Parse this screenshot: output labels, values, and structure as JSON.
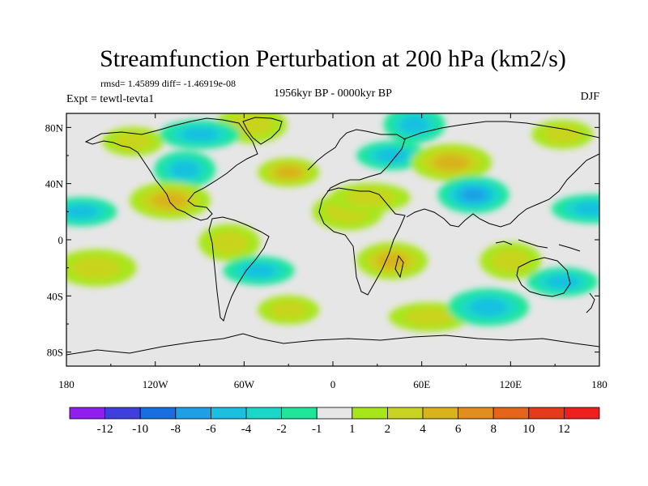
{
  "chart_data": {
    "type": "heatmap",
    "title": "Streamfunction Perturbation at 200 hPa (km2/s)",
    "stats_line": "rmsd= 1.45899 diff= -1.46919e-08",
    "left_label": "Expt = tewtl-tevta1",
    "center_label": "1956kyr BP - 0000kyr BP",
    "right_label": "DJF",
    "x_ticks": [
      "180",
      "120W",
      "60W",
      "0",
      "60E",
      "120E",
      "180"
    ],
    "x_tick_values": [
      -180,
      -120,
      -60,
      0,
      60,
      120,
      180
    ],
    "y_ticks": [
      "80N",
      "40N",
      "0",
      "40S",
      "80S"
    ],
    "y_tick_values": [
      80,
      40,
      0,
      -40,
      -80
    ],
    "xlim": [
      -180,
      180
    ],
    "ylim": [
      -90,
      90
    ],
    "colorbar": {
      "labels": [
        "-12",
        "-10",
        "-8",
        "-6",
        "-4",
        "-2",
        "-1",
        "1",
        "2",
        "4",
        "6",
        "8",
        "10",
        "12"
      ],
      "colors": [
        "#8f1ff0",
        "#3f3fe0",
        "#1a6fe0",
        "#1f9fe6",
        "#19c0df",
        "#1ad8c8",
        "#1fe69a",
        "#e6e6e6",
        "#a8e61a",
        "#c8d41f",
        "#d8b41a",
        "#e08f1f",
        "#e6651a",
        "#e63a1a",
        "#f01f1f"
      ]
    },
    "anomalies": [
      {
        "lon": -135,
        "lat": 70,
        "value": 2
      },
      {
        "lon": -55,
        "lat": 82,
        "value": 2
      },
      {
        "lon": -90,
        "lat": 75,
        "value": -4
      },
      {
        "lon": -100,
        "lat": 50,
        "value": -4
      },
      {
        "lon": -170,
        "lat": 20,
        "value": -4
      },
      {
        "lon": -110,
        "lat": 28,
        "value": 5
      },
      {
        "lon": -30,
        "lat": 48,
        "value": 4
      },
      {
        "lon": 10,
        "lat": 20,
        "value": 2
      },
      {
        "lon": 25,
        "lat": 30,
        "value": 2
      },
      {
        "lon": 55,
        "lat": 82,
        "value": -4
      },
      {
        "lon": 40,
        "lat": 60,
        "value": -4
      },
      {
        "lon": 80,
        "lat": 55,
        "value": 4
      },
      {
        "lon": 155,
        "lat": 75,
        "value": 2
      },
      {
        "lon": 95,
        "lat": 32,
        "value": -6
      },
      {
        "lon": 175,
        "lat": 22,
        "value": -4
      },
      {
        "lon": -70,
        "lat": -2,
        "value": 2
      },
      {
        "lon": -50,
        "lat": -22,
        "value": -4
      },
      {
        "lon": -160,
        "lat": -20,
        "value": 2
      },
      {
        "lon": -30,
        "lat": -50,
        "value": 2
      },
      {
        "lon": 40,
        "lat": -15,
        "value": 4
      },
      {
        "lon": 65,
        "lat": -55,
        "value": 2
      },
      {
        "lon": 120,
        "lat": -15,
        "value": 2
      },
      {
        "lon": 155,
        "lat": -30,
        "value": -4
      },
      {
        "lon": 105,
        "lat": -48,
        "value": -4
      }
    ]
  }
}
